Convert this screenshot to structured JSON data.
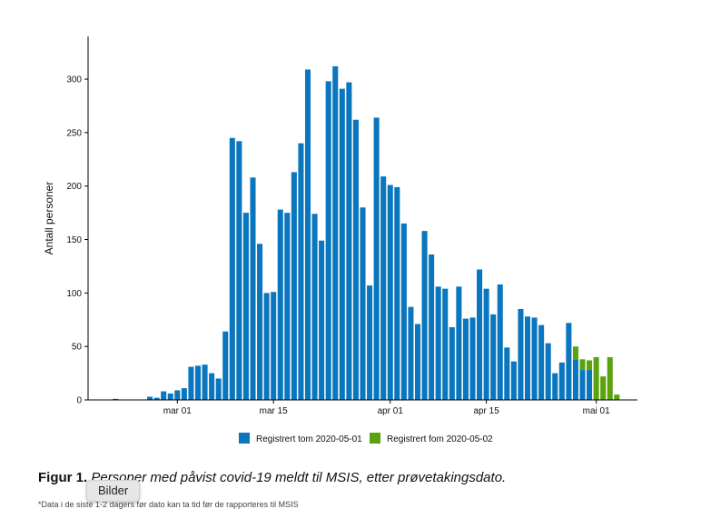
{
  "chart_data": {
    "type": "bar",
    "ylabel": "Antall personer",
    "xlabel": "",
    "ylim": [
      0,
      340
    ],
    "y_ticks": [
      0,
      50,
      100,
      150,
      200,
      250,
      300
    ],
    "x_tick_labels": [
      {
        "date": "2020-03-01",
        "label": "mar 01"
      },
      {
        "date": "2020-03-15",
        "label": "mar 15"
      },
      {
        "date": "2020-04-01",
        "label": "apr 01"
      },
      {
        "date": "2020-04-15",
        "label": "apr 15"
      },
      {
        "date": "2020-05-01",
        "label": "mai 01"
      }
    ],
    "x_range": [
      "2020-02-17",
      "2020-05-07"
    ],
    "legend_position": "bottom",
    "stacked": true,
    "series": [
      {
        "name": "Registrert tom 2020-05-01",
        "color": "#0a76bd",
        "points": [
          [
            "2020-02-21",
            1
          ],
          [
            "2020-02-26",
            3
          ],
          [
            "2020-02-27",
            2
          ],
          [
            "2020-02-28",
            8
          ],
          [
            "2020-02-29",
            6
          ],
          [
            "2020-03-01",
            9
          ],
          [
            "2020-03-02",
            11
          ],
          [
            "2020-03-03",
            31
          ],
          [
            "2020-03-04",
            32
          ],
          [
            "2020-03-05",
            33
          ],
          [
            "2020-03-06",
            25
          ],
          [
            "2020-03-07",
            20
          ],
          [
            "2020-03-08",
            64
          ],
          [
            "2020-03-09",
            245
          ],
          [
            "2020-03-10",
            242
          ],
          [
            "2020-03-11",
            175
          ],
          [
            "2020-03-12",
            208
          ],
          [
            "2020-03-13",
            146
          ],
          [
            "2020-03-14",
            100
          ],
          [
            "2020-03-15",
            101
          ],
          [
            "2020-03-16",
            178
          ],
          [
            "2020-03-17",
            175
          ],
          [
            "2020-03-18",
            213
          ],
          [
            "2020-03-19",
            240
          ],
          [
            "2020-03-20",
            309
          ],
          [
            "2020-03-21",
            174
          ],
          [
            "2020-03-22",
            149
          ],
          [
            "2020-03-23",
            298
          ],
          [
            "2020-03-24",
            312
          ],
          [
            "2020-03-25",
            291
          ],
          [
            "2020-03-26",
            297
          ],
          [
            "2020-03-27",
            262
          ],
          [
            "2020-03-28",
            180
          ],
          [
            "2020-03-29",
            107
          ],
          [
            "2020-03-30",
            264
          ],
          [
            "2020-03-31",
            209
          ],
          [
            "2020-04-01",
            201
          ],
          [
            "2020-04-02",
            199
          ],
          [
            "2020-04-03",
            165
          ],
          [
            "2020-04-04",
            87
          ],
          [
            "2020-04-05",
            71
          ],
          [
            "2020-04-06",
            158
          ],
          [
            "2020-04-07",
            136
          ],
          [
            "2020-04-08",
            106
          ],
          [
            "2020-04-09",
            104
          ],
          [
            "2020-04-10",
            68
          ],
          [
            "2020-04-11",
            106
          ],
          [
            "2020-04-12",
            76
          ],
          [
            "2020-04-13",
            77
          ],
          [
            "2020-04-14",
            122
          ],
          [
            "2020-04-15",
            104
          ],
          [
            "2020-04-16",
            80
          ],
          [
            "2020-04-17",
            108
          ],
          [
            "2020-04-18",
            49
          ],
          [
            "2020-04-19",
            36
          ],
          [
            "2020-04-20",
            85
          ],
          [
            "2020-04-21",
            78
          ],
          [
            "2020-04-22",
            77
          ],
          [
            "2020-04-23",
            70
          ],
          [
            "2020-04-24",
            53
          ],
          [
            "2020-04-25",
            25
          ],
          [
            "2020-04-26",
            35
          ],
          [
            "2020-04-27",
            72
          ],
          [
            "2020-04-28",
            38
          ],
          [
            "2020-04-29",
            28
          ],
          [
            "2020-04-30",
            28
          ]
        ]
      },
      {
        "name": "Registrert fom 2020-05-02",
        "color": "#5ba20e",
        "points": [
          [
            "2020-04-28",
            12
          ],
          [
            "2020-04-29",
            10
          ],
          [
            "2020-04-30",
            9
          ],
          [
            "2020-05-01",
            40
          ],
          [
            "2020-05-02",
            22
          ],
          [
            "2020-05-03",
            40
          ],
          [
            "2020-05-04",
            5
          ]
        ]
      }
    ]
  },
  "caption": {
    "prefix": "Figur 1.",
    "text": "Personer med påvist covid-19 meldt til MSIS, etter prøvetakingsdato."
  },
  "footnote": "*Data i de siste 1-2 dagers før dato kan ta tid før de rapporteres til MSIS",
  "tooltip": {
    "label": "Bilder"
  }
}
